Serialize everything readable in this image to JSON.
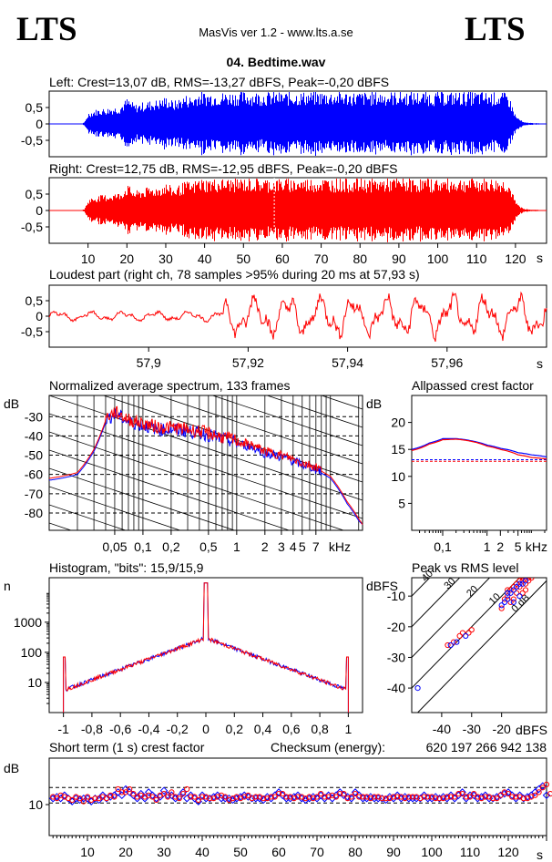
{
  "header": {
    "logo_left": "LTS",
    "logo_right": "LTS",
    "app_title": "MasVis ver 1.2 - www.lts.a.se",
    "file_title": "04. Bedtime.wav"
  },
  "colors": {
    "left": "#0000ff",
    "right": "#ff0000",
    "axis": "#000000",
    "grid": "#000000"
  },
  "chart_data": [
    {
      "id": "left-waveform",
      "type": "area",
      "title": "Left: Crest=13,07 dB, RMS=-13,27 dBFS, Peak=-0,20 dBFS",
      "yticks": [
        "0,5",
        "0",
        "-0,5"
      ],
      "ylim": [
        -1,
        1
      ],
      "xlim": [
        0,
        128
      ],
      "envelope": {
        "t": [
          0,
          8,
          9,
          10,
          12,
          15,
          18,
          20,
          22,
          25,
          28,
          30,
          32,
          35,
          37,
          38,
          40,
          45,
          50,
          60,
          70,
          80,
          90,
          100,
          110,
          118,
          119,
          120,
          122,
          128
        ],
        "amp": [
          0,
          0,
          0.05,
          0.35,
          0.45,
          0.5,
          0.55,
          0.8,
          0.6,
          0.7,
          0.75,
          0.85,
          0.7,
          0.9,
          0.85,
          1.0,
          0.98,
          0.98,
          1.0,
          0.98,
          1.0,
          0.98,
          1.0,
          0.98,
          1.0,
          0.95,
          0.6,
          0.25,
          0.05,
          0
        ]
      }
    },
    {
      "id": "right-waveform",
      "type": "area",
      "title": "Right: Crest=12,75 dB, RMS=-12,95 dBFS, Peak=-0,20 dBFS",
      "yticks": [
        "0,5",
        "0",
        "-0,5"
      ],
      "ylim": [
        -1,
        1
      ],
      "xlim": [
        0,
        128
      ],
      "xticks": [
        "10",
        "20",
        "30",
        "40",
        "50",
        "60",
        "70",
        "80",
        "90",
        "100",
        "110",
        "120"
      ],
      "xunit": "s",
      "marker_time": 57.93,
      "envelope": {
        "t": [
          0,
          8,
          9,
          10,
          12,
          15,
          18,
          20,
          22,
          25,
          28,
          30,
          32,
          35,
          37,
          38,
          40,
          45,
          50,
          60,
          70,
          80,
          90,
          100,
          110,
          118,
          119,
          120,
          122,
          128
        ],
        "amp": [
          0,
          0,
          0.05,
          0.35,
          0.45,
          0.5,
          0.55,
          0.8,
          0.6,
          0.7,
          0.75,
          0.85,
          0.7,
          0.9,
          0.85,
          1.0,
          0.98,
          0.98,
          1.0,
          0.98,
          1.0,
          0.98,
          1.0,
          0.98,
          1.0,
          0.95,
          0.6,
          0.25,
          0.05,
          0
        ]
      }
    },
    {
      "id": "loudest-part",
      "type": "line",
      "title": "Loudest part (right ch, 78 samples >95% during 20 ms at 57,93 s)",
      "yticks": [
        "0,5",
        "0",
        "-0,5"
      ],
      "ylim": [
        -1,
        1
      ],
      "xlim": [
        57.88,
        57.98
      ],
      "xticks": [
        "57,9",
        "57,92",
        "57,94",
        "57,96"
      ],
      "xtick_values": [
        57.9,
        57.92,
        57.94,
        57.96
      ],
      "xunit": "s"
    },
    {
      "id": "spectrum",
      "type": "line",
      "title": "Normalized average spectrum, 133 frames",
      "ylabel": "dB",
      "yticks": [
        "-30",
        "-40",
        "-50",
        "-60",
        "-70",
        "-80"
      ],
      "ytick_values": [
        -30,
        -40,
        -50,
        -60,
        -70,
        -80
      ],
      "ylim": [
        -89,
        -19
      ],
      "xscale": "log",
      "xlim": [
        0.01,
        22
      ],
      "xticks": [
        "0,05",
        "0,1",
        "0,2",
        "0,5",
        "1",
        "2",
        "3",
        "4",
        "5",
        "7"
      ],
      "xtick_values": [
        0.05,
        0.1,
        0.2,
        0.5,
        1,
        2,
        3,
        4,
        5,
        7
      ],
      "xunit": "kHz",
      "series": [
        {
          "name": "",
          "color": "#0000ff",
          "f": [
            0.01,
            0.02,
            0.03,
            0.04,
            0.05,
            0.07,
            0.1,
            0.15,
            0.2,
            0.3,
            0.5,
            0.7,
            1,
            1.5,
            2,
            3,
            4,
            5,
            7,
            10,
            15,
            20,
            22
          ],
          "db": [
            -63,
            -60,
            -48,
            -33,
            -30,
            -34,
            -36,
            -38,
            -38,
            -39,
            -41,
            -43,
            -45,
            -47,
            -50,
            -52,
            -54,
            -56,
            -58,
            -62,
            -75,
            -84,
            -86
          ]
        },
        {
          "name": "",
          "color": "#ff0000",
          "f": [
            0.01,
            0.02,
            0.03,
            0.04,
            0.05,
            0.07,
            0.1,
            0.15,
            0.2,
            0.3,
            0.5,
            0.7,
            1,
            1.5,
            2,
            3,
            4,
            5,
            7,
            10,
            15,
            20,
            22
          ],
          "db": [
            -62,
            -59,
            -47,
            -32,
            -29,
            -33,
            -35,
            -37,
            -37,
            -38,
            -40,
            -42,
            -44,
            -46,
            -49,
            -51,
            -53,
            -55,
            -57,
            -61,
            -74,
            -83,
            -86
          ]
        }
      ]
    },
    {
      "id": "allpassed-crest",
      "type": "line",
      "title": "Allpassed crest factor",
      "ylabel": "dB",
      "yticks": [
        "20",
        "15",
        "10",
        "5"
      ],
      "ytick_values": [
        20,
        15,
        10,
        5
      ],
      "ylim": [
        0,
        25
      ],
      "xscale": "log",
      "xlim": [
        0.02,
        22
      ],
      "xticks": [
        "0,1",
        "1",
        "2",
        "5"
      ],
      "xtick_values": [
        0.1,
        1,
        2,
        5
      ],
      "xunit": "kHz",
      "series": [
        {
          "name": "",
          "color": "#0000ff",
          "f": [
            0.02,
            0.05,
            0.1,
            0.2,
            0.5,
            1,
            2,
            5,
            10,
            22
          ],
          "db": [
            15,
            16.2,
            17,
            17,
            16.5,
            15.8,
            15.2,
            14.4,
            14,
            13.6
          ]
        },
        {
          "name": "",
          "color": "#ff0000",
          "f": [
            0.02,
            0.05,
            0.1,
            0.2,
            0.5,
            1,
            2,
            5,
            10,
            22
          ],
          "db": [
            14.8,
            16,
            16.8,
            16.9,
            16.4,
            15.6,
            15,
            14,
            13.5,
            13.2
          ]
        }
      ],
      "ref_lines": [
        {
          "color": "#0000ff",
          "db": 13.1
        },
        {
          "color": "#ff0000",
          "db": 12.8
        }
      ]
    },
    {
      "id": "histogram",
      "type": "line",
      "title": "Histogram, \"bits\": 15,9/15,9",
      "ylabel": "n",
      "yscale": "log",
      "yticks": [
        "1000",
        "100",
        "10"
      ],
      "ytick_values": [
        1000,
        100,
        10
      ],
      "ylim": [
        1,
        30000
      ],
      "xlim": [
        -1.1,
        1.1
      ],
      "xticks": [
        "-1",
        "-0,8",
        "-0,6",
        "-0,4",
        "-0,2",
        "0",
        "0,2",
        "0,4",
        "0,6",
        "0,8",
        "1"
      ],
      "xtick_values": [
        -1,
        -0.8,
        -0.6,
        -0.4,
        -0.2,
        0,
        0.2,
        0.4,
        0.6,
        0.8,
        1
      ],
      "center_peak": 20000,
      "edge_peak": 70
    },
    {
      "id": "peak-vs-rms",
      "type": "scatter",
      "title": "Peak vs RMS level",
      "ylabel": "dBFS",
      "xunit": "dBFS",
      "yticks": [
        "-10",
        "-20",
        "-30",
        "-40"
      ],
      "ytick_values": [
        -10,
        -20,
        -30,
        -40
      ],
      "xticks": [
        "-40",
        "-30",
        "-20"
      ],
      "xtick_values": [
        -40,
        -30,
        -20
      ],
      "xlim": [
        -50,
        -5
      ],
      "ylim": [
        -48,
        -4
      ],
      "diag_labels": [
        "40",
        "30",
        "20",
        "10",
        "0 dB"
      ],
      "diag_offsets": [
        40,
        30,
        20,
        10,
        0
      ],
      "series": [
        {
          "name": "",
          "color": "#ff0000",
          "points": [
            [
              -38,
              -26
            ],
            [
              -36,
              -25
            ],
            [
              -34,
              -23
            ],
            [
              -33,
              -22
            ],
            [
              -31,
              -22
            ],
            [
              -30,
              -21
            ],
            [
              -20,
              -14
            ],
            [
              -19,
              -11
            ],
            [
              -18,
              -10
            ],
            [
              -17,
              -8
            ],
            [
              -16,
              -7
            ],
            [
              -15,
              -6
            ],
            [
              -14,
              -5
            ],
            [
              -13,
              -5
            ],
            [
              -12,
              -6
            ],
            [
              -11,
              -5
            ],
            [
              -13,
              -9
            ],
            [
              -15,
              -9
            ],
            [
              -17,
              -12
            ],
            [
              -16,
              -11
            ],
            [
              -12,
              -8
            ],
            [
              -14,
              -7
            ],
            [
              -18,
              -8
            ],
            [
              -13,
              -4
            ],
            [
              -11,
              -4
            ],
            [
              -10,
              -4
            ]
          ]
        },
        {
          "name": "",
          "color": "#0000ff",
          "points": [
            [
              -48,
              -40
            ],
            [
              -37,
              -26
            ],
            [
              -35,
              -25
            ],
            [
              -32,
              -23
            ],
            [
              -20,
              -13
            ],
            [
              -19,
              -12
            ],
            [
              -18,
              -11
            ],
            [
              -17,
              -9
            ],
            [
              -16,
              -8
            ],
            [
              -15,
              -7
            ],
            [
              -14,
              -6
            ],
            [
              -13,
              -6
            ],
            [
              -12,
              -5
            ],
            [
              -16,
              -12
            ],
            [
              -14,
              -10
            ],
            [
              -18,
              -9
            ]
          ]
        }
      ]
    },
    {
      "id": "short-term-crest",
      "type": "scatter",
      "title": "Short term (1 s) crest factor",
      "ylabel": "dB",
      "yticks": [
        "10"
      ],
      "ytick_values": [
        10
      ],
      "ylim": [
        0,
        25
      ],
      "xlim": [
        0,
        130
      ],
      "xticks": [
        "10",
        "20",
        "30",
        "40",
        "50",
        "60",
        "70",
        "80",
        "90",
        "100",
        "110",
        "120"
      ],
      "xtick_values": [
        10,
        20,
        30,
        40,
        50,
        60,
        70,
        80,
        90,
        100,
        110,
        120
      ],
      "xunit": "s",
      "ref_lines": [
        {
          "db": 15.5
        },
        {
          "db": 10.5
        }
      ],
      "left": [
        12,
        12.5,
        12,
        13,
        12,
        11,
        12,
        11.5,
        12,
        12,
        11,
        12,
        11.5,
        13,
        12,
        12.5,
        13,
        14,
        13,
        15,
        14,
        13,
        12,
        13.5,
        12,
        14,
        13,
        12,
        12.5,
        14.5,
        13,
        13,
        12,
        12.5,
        14,
        12,
        13,
        12,
        11,
        13,
        12,
        12,
        12.5,
        13,
        12,
        12,
        12,
        11.5,
        12,
        12.5,
        13,
        12.5,
        12,
        12,
        12,
        11.5,
        12.5,
        12,
        13,
        14,
        13,
        12,
        12,
        12.5,
        13,
        12,
        11.5,
        12,
        12.5,
        12,
        13,
        12,
        13,
        12,
        13,
        14,
        13,
        12.5,
        12,
        14,
        13,
        12,
        12,
        12.5,
        12,
        12,
        12,
        11.5,
        12.5,
        12,
        13,
        12,
        12.5,
        12,
        12,
        12,
        12,
        13,
        12,
        12,
        12.5,
        12,
        12.5,
        12,
        13,
        12,
        13,
        14,
        12,
        13,
        13,
        12,
        12.5,
        13,
        12,
        12,
        12.5,
        13,
        13.5,
        14,
        13,
        12,
        13,
        12,
        12.5,
        13,
        14,
        15,
        16,
        13
      ],
      "right": [
        12.5,
        12,
        13,
        12.5,
        12,
        11.5,
        12.5,
        12,
        11,
        12.5,
        11.5,
        12,
        12,
        12.5,
        12,
        13,
        12.5,
        15,
        14,
        14,
        15,
        13.5,
        12.5,
        13,
        12.5,
        13,
        12.5,
        11.5,
        13,
        13.5,
        12.5,
        14,
        12.5,
        12,
        13.5,
        15,
        12.5,
        12.5,
        11.5,
        12.5,
        12.5,
        12,
        12,
        12.5,
        13,
        12.5,
        11.5,
        12,
        12.5,
        12,
        12.5,
        13,
        12,
        12.5,
        12.5,
        12,
        12,
        12.5,
        12.5,
        13.5,
        13.5,
        12.5,
        12.5,
        12,
        12.5,
        12.5,
        12,
        12.5,
        12,
        12.5,
        13.5,
        12.5,
        12.5,
        13,
        12.5,
        13.5,
        13.5,
        12,
        12.5,
        13.5,
        12.5,
        12.5,
        12.5,
        12,
        12.5,
        12.5,
        12,
        12,
        12,
        12.5,
        12.5,
        12.5,
        12,
        12.5,
        12.5,
        12.5,
        12,
        12.5,
        12.5,
        12.5,
        12,
        12,
        12,
        12.5,
        12.5,
        12.5,
        13.5,
        13.5,
        12.5,
        12.5,
        13.5,
        12.5,
        12,
        12.5,
        12.5,
        12,
        12,
        13,
        14,
        13.5,
        12.5,
        12.5,
        12.5,
        12,
        12,
        12.5,
        13,
        14,
        15.5,
        16.5,
        13.5
      ]
    }
  ],
  "checksum": {
    "label": "Checksum (energy):",
    "value": "620 197 266 942 138"
  }
}
